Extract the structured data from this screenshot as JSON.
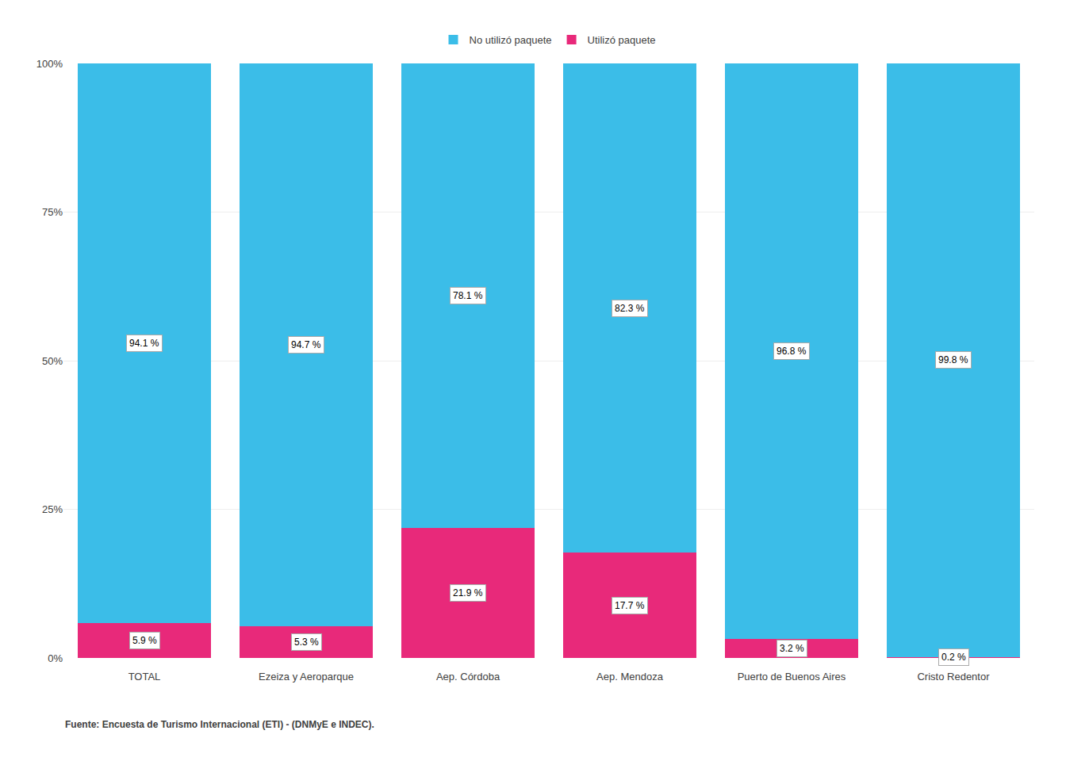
{
  "chart_data": {
    "type": "bar",
    "stacked": true,
    "categories": [
      "TOTAL",
      "Ezeiza y Aeroparque",
      "Aep. Córdoba",
      "Aep. Mendoza",
      "Puerto de Buenos Aires",
      "Cristo Redentor"
    ],
    "series": [
      {
        "name": "Utilizó paquete",
        "color": "#E8297A",
        "values": [
          5.9,
          5.3,
          21.9,
          17.7,
          3.2,
          0.2
        ],
        "value_labels": [
          "5.9 %",
          "5.3 %",
          "21.9 %",
          "17.7 %",
          "3.2 %",
          "0.2 %"
        ]
      },
      {
        "name": "No utilizó paquete",
        "color": "#3BBDE8",
        "values": [
          94.1,
          94.7,
          78.1,
          82.3,
          96.8,
          99.8
        ],
        "value_labels": [
          "94.1 %",
          "94.7 %",
          "78.1 %",
          "82.3 %",
          "96.8 %",
          "99.8 %"
        ]
      }
    ],
    "ylim": [
      0,
      100
    ],
    "yticks": [
      {
        "value": 0,
        "label": "0%"
      },
      {
        "value": 25,
        "label": "25%"
      },
      {
        "value": 50,
        "label": "50%"
      },
      {
        "value": 75,
        "label": "75%"
      },
      {
        "value": 100,
        "label": "100%"
      }
    ],
    "grid": true,
    "legend": "top",
    "data_labels": true,
    "annotations": [
      "Fuente: Encuesta de Turismo Internacional (ETI) - (DNMyE e INDEC)."
    ]
  }
}
